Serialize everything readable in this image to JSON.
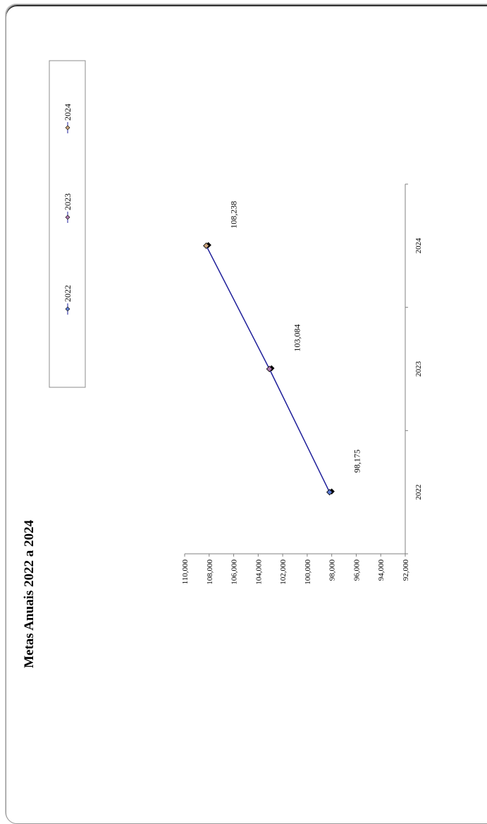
{
  "chart_data": {
    "type": "line",
    "title": "Metas Anuais 2022 a 2024",
    "categories": [
      "2022",
      "2023",
      "2024"
    ],
    "values": [
      98175,
      103084,
      108238
    ],
    "data_labels": [
      "98,175",
      "103,084",
      "108,238"
    ],
    "ylim": [
      92000,
      110000
    ],
    "y_ticks": [
      "92,000",
      "94,000",
      "96,000",
      "98,000",
      "100,000",
      "102,000",
      "104,000",
      "106,000",
      "108,000",
      "110,000"
    ],
    "legend": [
      "2022",
      "2023",
      "2024"
    ],
    "legend_position": "right",
    "grid": false,
    "orientation": "rotated-90",
    "colors": {
      "line": "#1f1f9a",
      "marker_2022": "#5b7bd5",
      "marker_2023": "#b07ab0",
      "marker_2024": "#c9a27a",
      "marker_edge": "#000000"
    }
  }
}
